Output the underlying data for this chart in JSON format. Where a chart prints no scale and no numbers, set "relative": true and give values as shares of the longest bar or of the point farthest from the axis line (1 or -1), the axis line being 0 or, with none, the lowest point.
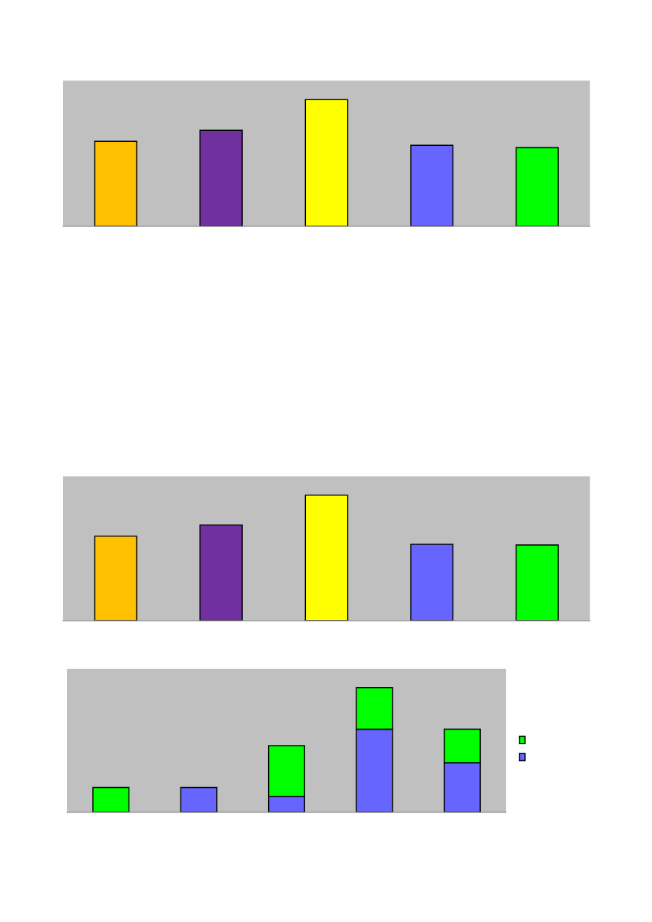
{
  "chart_data": [
    {
      "type": "bar",
      "relative": true,
      "categories": [
        null,
        null,
        null,
        null,
        null
      ],
      "values": [
        0.671,
        0.758,
        1,
        0.64,
        0.621
      ],
      "colors": [
        "#ffc000",
        "#7030a0",
        "#ffff00",
        "#6666ff",
        "#00ff00"
      ],
      "grid": false
    },
    {
      "type": "bar",
      "relative": true,
      "categories": [
        null,
        null,
        null,
        null,
        null
      ],
      "values": [
        0.673,
        0.763,
        1,
        0.609,
        0.603
      ],
      "colors": [
        "#ffc000",
        "#7030a0",
        "#ffff00",
        "#6666ff",
        "#00ff00"
      ],
      "grid": false
    },
    {
      "type": "bar",
      "relative": true,
      "stacked": true,
      "categories": [
        null,
        null,
        null,
        null,
        null
      ],
      "grid": false,
      "series": [
        {
          "color": "#6666ff",
          "values": [
            0,
            0.199,
            0.129,
            0.667,
            0.398
          ]
        },
        {
          "color": "#00ff00",
          "values": [
            0.199,
            0,
            0.404,
            0.333,
            0.269
          ]
        }
      ]
    }
  ]
}
